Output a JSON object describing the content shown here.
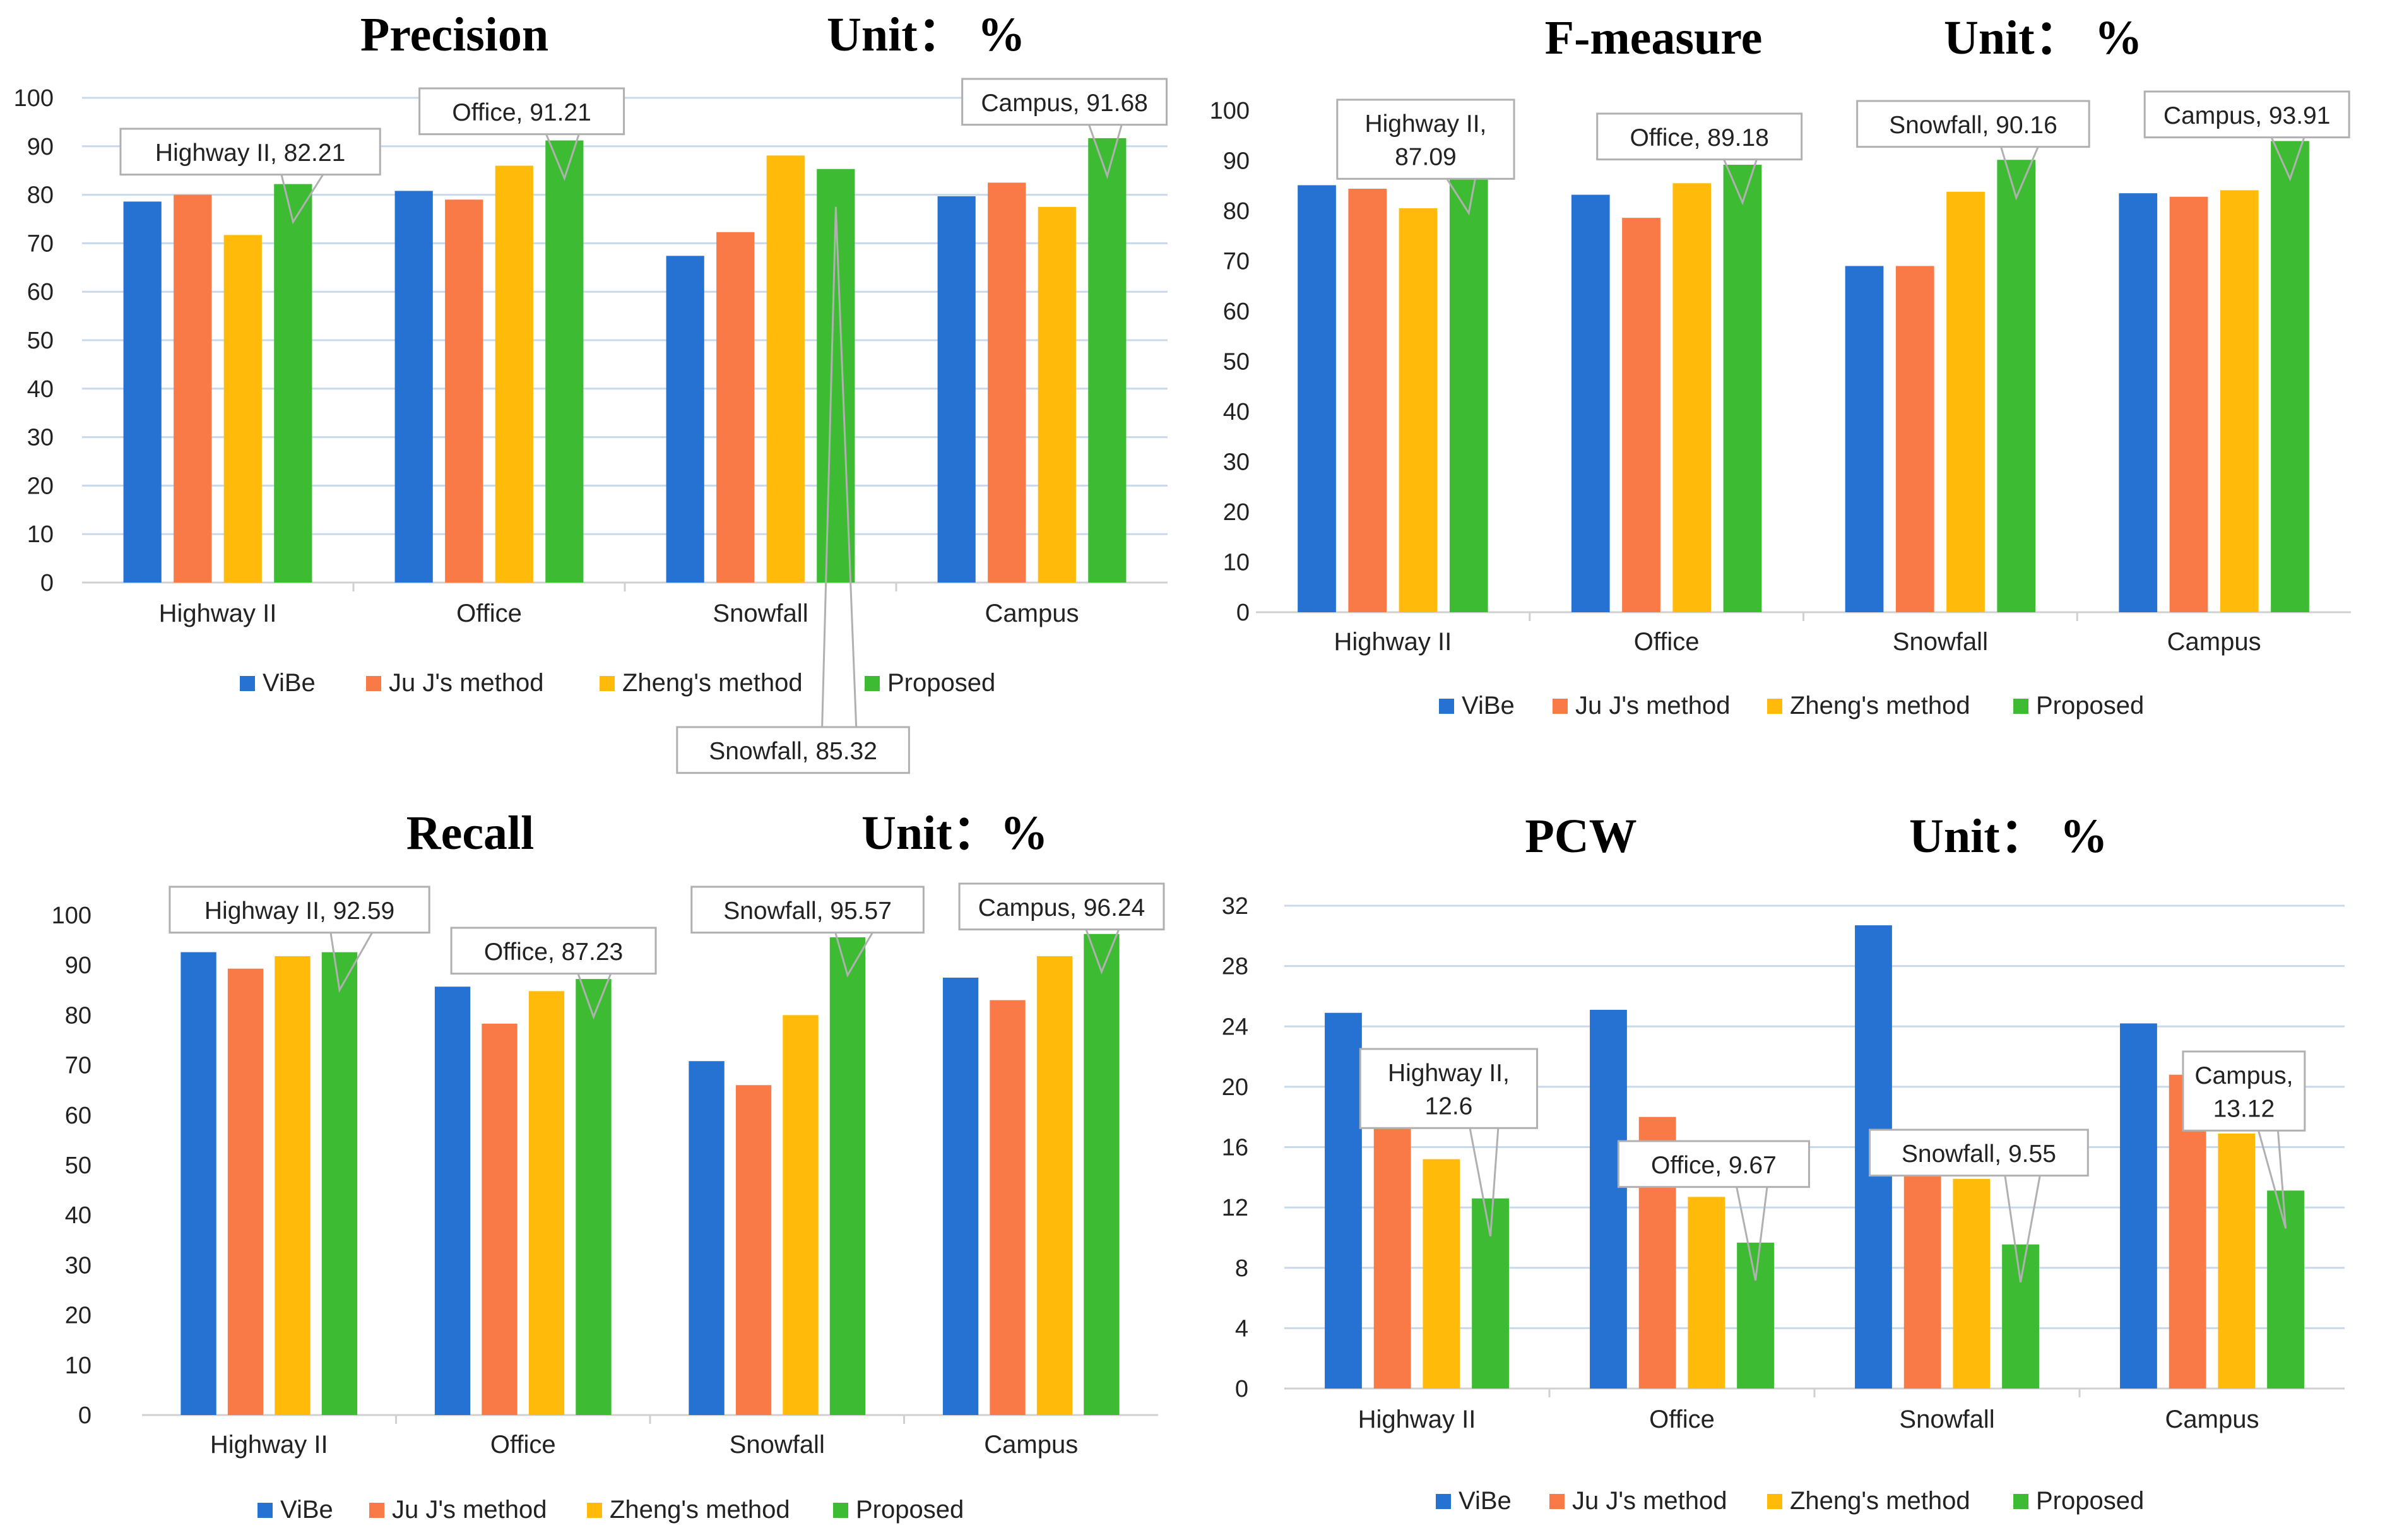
{
  "colors": {
    "ViBe": "#2672d2",
    "Ju J's method": "#f97a46",
    "Zheng's method": "#ffba0a",
    "Proposed": "#3dbb33",
    "grid": "#c9d9ea",
    "axis": "#d0d0d0",
    "text": "#222222",
    "callout_border": "#b0b0b0"
  },
  "chart_data": [
    {
      "type": "bar",
      "title": "Precision",
      "unit_label": "Unit： %",
      "categories": [
        "Highway II",
        "Office",
        "Snowfall",
        "Campus"
      ],
      "series": [
        {
          "name": "ViBe",
          "values": [
            78.6,
            80.8,
            67.4,
            79.7
          ]
        },
        {
          "name": "Ju J's method",
          "values": [
            80.0,
            79.0,
            72.3,
            82.5
          ]
        },
        {
          "name": "Zheng's method",
          "values": [
            71.7,
            86.0,
            88.1,
            77.5
          ]
        },
        {
          "name": "Proposed",
          "values": [
            82.21,
            91.21,
            85.32,
            91.68
          ]
        }
      ],
      "ylim": [
        0,
        100
      ],
      "yticks": [
        0,
        10,
        20,
        30,
        40,
        50,
        60,
        70,
        80,
        90,
        100
      ],
      "grid": true,
      "legend": "bottom",
      "annotations": [
        {
          "lines": [
            "Highway II, 82.21"
          ],
          "category": "Highway II"
        },
        {
          "lines": [
            "Office, 91.21"
          ],
          "category": "Office"
        },
        {
          "lines": [
            "Snowfall, 85.32"
          ],
          "category": "Snowfall"
        },
        {
          "lines": [
            "Campus, 91.68"
          ],
          "category": "Campus"
        }
      ]
    },
    {
      "type": "bar",
      "title": "F-measure",
      "unit_label": "Unit： %",
      "categories": [
        "Highway II",
        "Office",
        "Snowfall",
        "Campus"
      ],
      "series": [
        {
          "name": "ViBe",
          "values": [
            85.1,
            83.2,
            69.0,
            83.5
          ]
        },
        {
          "name": "Ju J's method",
          "values": [
            84.4,
            78.6,
            69.0,
            82.8
          ]
        },
        {
          "name": "Zheng's method",
          "values": [
            80.5,
            85.5,
            83.8,
            84.1
          ]
        },
        {
          "name": "Proposed",
          "values": [
            87.09,
            89.18,
            90.16,
            93.91
          ]
        }
      ],
      "ylim": [
        0,
        100
      ],
      "yticks": [
        0,
        10,
        20,
        30,
        40,
        50,
        60,
        70,
        80,
        90,
        100
      ],
      "grid": false,
      "legend": "bottom",
      "annotations": [
        {
          "lines": [
            "Highway II,",
            "87.09"
          ],
          "category": "Highway II"
        },
        {
          "lines": [
            "Office, 89.18"
          ],
          "category": "Office"
        },
        {
          "lines": [
            "Snowfall, 90.16"
          ],
          "category": "Snowfall"
        },
        {
          "lines": [
            "Campus, 93.91"
          ],
          "category": "Campus"
        }
      ]
    },
    {
      "type": "bar",
      "title": "Recall",
      "unit_label": "Unit：%",
      "categories": [
        "Highway II",
        "Office",
        "Snowfall",
        "Campus"
      ],
      "series": [
        {
          "name": "ViBe",
          "values": [
            92.6,
            85.7,
            70.8,
            87.5
          ]
        },
        {
          "name": "Ju J's method",
          "values": [
            89.3,
            78.3,
            66.0,
            83.0
          ]
        },
        {
          "name": "Zheng's method",
          "values": [
            91.8,
            84.8,
            80.0,
            91.8
          ]
        },
        {
          "name": "Proposed",
          "values": [
            92.59,
            87.23,
            95.57,
            96.24
          ]
        }
      ],
      "ylim": [
        0,
        100
      ],
      "yticks": [
        0,
        10,
        20,
        30,
        40,
        50,
        60,
        70,
        80,
        90,
        100
      ],
      "grid": false,
      "legend": "bottom",
      "annotations": [
        {
          "lines": [
            "Highway II, 92.59"
          ],
          "category": "Highway II"
        },
        {
          "lines": [
            "Office, 87.23"
          ],
          "category": "Office"
        },
        {
          "lines": [
            "Snowfall, 95.57"
          ],
          "category": "Snowfall"
        },
        {
          "lines": [
            "Campus, 96.24"
          ],
          "category": "Campus"
        }
      ]
    },
    {
      "type": "bar",
      "title": "PCW",
      "unit_label": "Unit： %",
      "categories": [
        "Highway II",
        "Office",
        "Snowfall",
        "Campus"
      ],
      "series": [
        {
          "name": "ViBe",
          "values": [
            24.9,
            25.1,
            30.7,
            24.2
          ]
        },
        {
          "name": "Ju J's method",
          "values": [
            18.1,
            18.0,
            15.9,
            20.8
          ]
        },
        {
          "name": "Zheng's method",
          "values": [
            15.2,
            12.7,
            13.9,
            16.9
          ]
        },
        {
          "name": "Proposed",
          "values": [
            12.6,
            9.67,
            9.55,
            13.12
          ]
        }
      ],
      "ylim": [
        0,
        32
      ],
      "yticks": [
        0,
        4,
        8,
        12,
        16,
        20,
        24,
        28,
        32
      ],
      "grid": true,
      "legend": "bottom",
      "annotations": [
        {
          "lines": [
            "Highway II,",
            "12.6"
          ],
          "category": "Highway II"
        },
        {
          "lines": [
            "Office, 9.67"
          ],
          "category": "Office"
        },
        {
          "lines": [
            "Snowfall, 9.55"
          ],
          "category": "Snowfall"
        },
        {
          "lines": [
            "Campus,",
            "13.12"
          ],
          "category": "Campus"
        }
      ]
    }
  ]
}
